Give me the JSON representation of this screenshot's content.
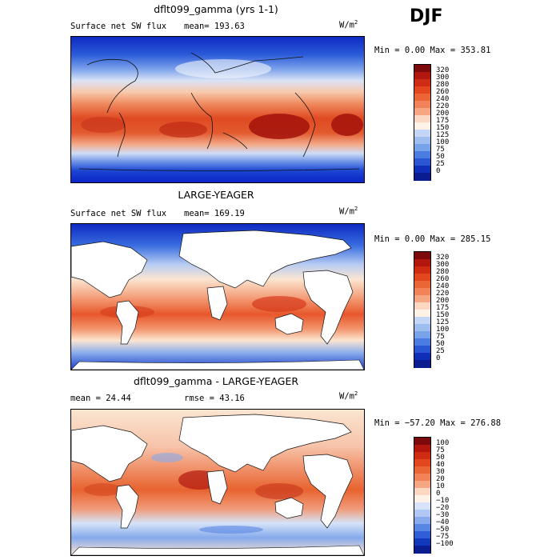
{
  "season": "DJF",
  "colors": {
    "deep_blue": "#0a1fa8",
    "mid_blue": "#3c6fe0",
    "light_blue": "#b9cdf2",
    "cream": "#fbe5d1",
    "peach": "#f7b493",
    "orange_red": "#e8572b",
    "dark_red": "#8e0f0c"
  },
  "panels": [
    {
      "title": "dflt099_gamma (yrs 1-1)",
      "variable": "Surface net SW flux",
      "stat_left": "mean= 193.63",
      "stat_right": "",
      "units": "W/m",
      "units_sup": "2",
      "minmax": "Min =    0.00 Max = 353.81",
      "colorbar_labels": [
        "320",
        "300",
        "280",
        "260",
        "240",
        "220",
        "200",
        "175",
        "150",
        "125",
        "100",
        "75",
        "50",
        "25",
        "0"
      ],
      "colorbar_colors": [
        "#7c0a0a",
        "#b2170f",
        "#d02c14",
        "#e2471e",
        "#ec6536",
        "#f2825a",
        "#f6a683",
        "#fcd8c2",
        "#fdf1e8",
        "#c3d6f6",
        "#9ebef0",
        "#7aa2ea",
        "#4c7be2",
        "#2a56d4",
        "#0f2fb8",
        "#0a1c8f"
      ],
      "land_masked": false
    },
    {
      "title": "LARGE-YEAGER",
      "variable": "Surface net SW flux",
      "stat_left": "mean= 169.19",
      "stat_right": "",
      "units": "W/m",
      "units_sup": "2",
      "minmax": "Min =    0.00 Max = 285.15",
      "colorbar_labels": [
        "320",
        "300",
        "280",
        "260",
        "240",
        "220",
        "200",
        "175",
        "150",
        "125",
        "100",
        "75",
        "50",
        "25",
        "0"
      ],
      "colorbar_colors": [
        "#7c0a0a",
        "#b2170f",
        "#d02c14",
        "#e2471e",
        "#ec6536",
        "#f2825a",
        "#f6a683",
        "#fcd8c2",
        "#fdf1e8",
        "#c3d6f6",
        "#9ebef0",
        "#7aa2ea",
        "#4c7be2",
        "#2a56d4",
        "#0f2fb8",
        "#0a1c8f"
      ],
      "land_masked": true
    },
    {
      "title": "dflt099_gamma - LARGE-YEAGER",
      "variable": "",
      "stat_left": "mean =   24.44",
      "stat_right": "rmse =   43.16",
      "units": "W/m",
      "units_sup": "2",
      "minmax": "Min = −57.20 Max = 276.88",
      "colorbar_labels": [
        "100",
        "75",
        "50",
        "40",
        "30",
        "20",
        "10",
        "0",
        "−10",
        "−20",
        "−30",
        "−40",
        "−50",
        "−75",
        "−100"
      ],
      "colorbar_colors": [
        "#7c0a0a",
        "#b2170f",
        "#d02c14",
        "#e2471e",
        "#ec6536",
        "#f2825a",
        "#f6a683",
        "#fcd8c2",
        "#fdf1e8",
        "#d6e3f8",
        "#b0c8f2",
        "#86aaec",
        "#5886e4",
        "#2f5ed6",
        "#1238bd",
        "#0a1c8f"
      ],
      "land_masked": true
    }
  ]
}
